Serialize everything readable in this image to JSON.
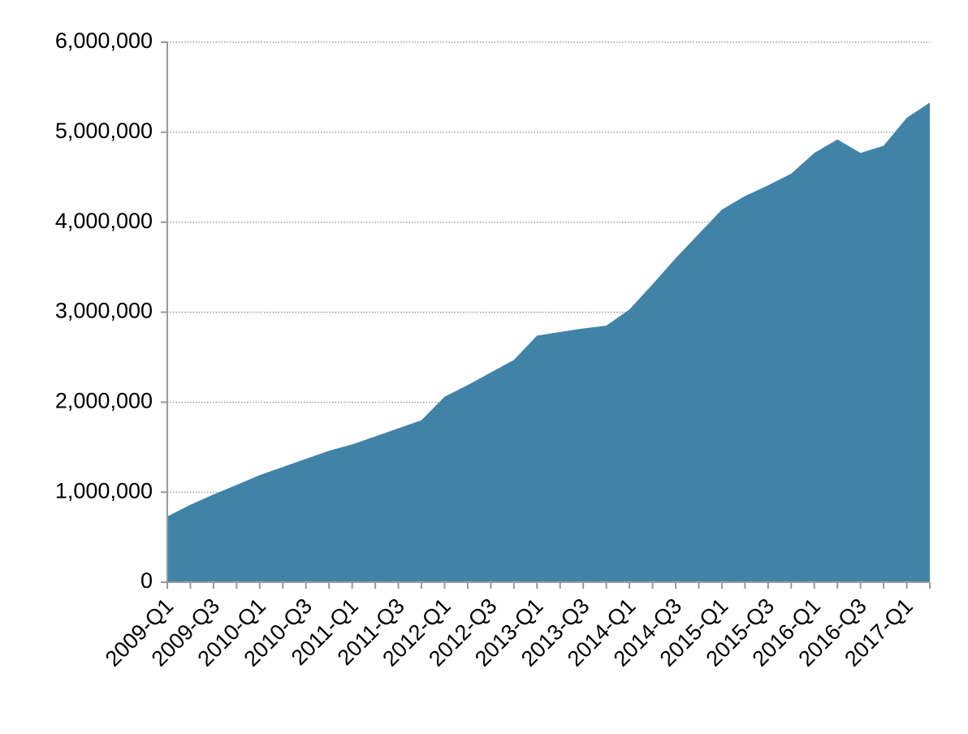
{
  "chart_data": {
    "type": "area",
    "categories": [
      "2009-Q1",
      null,
      "2009-Q3",
      null,
      "2010-Q1",
      null,
      "2010-Q3",
      null,
      "2011-Q1",
      null,
      "2011-Q3",
      null,
      "2012-Q1",
      null,
      "2012-Q3",
      null,
      "2013-Q1",
      null,
      "2013-Q3",
      null,
      "2014-Q1",
      null,
      "2014-Q3",
      null,
      "2015-Q1",
      null,
      "2015-Q3",
      null,
      "2016-Q1",
      null,
      "2016-Q3",
      null,
      "2017-Q1",
      null
    ],
    "values": [
      730000,
      860000,
      975000,
      1080000,
      1190000,
      1280000,
      1370000,
      1460000,
      1530000,
      1620000,
      1710000,
      1800000,
      2060000,
      2190000,
      2330000,
      2470000,
      2740000,
      2780000,
      2820000,
      2850000,
      3030000,
      3310000,
      3600000,
      3870000,
      4140000,
      4290000,
      4410000,
      4540000,
      4770000,
      4920000,
      4770000,
      4850000,
      5160000,
      5330000
    ],
    "color": "#4183a7",
    "ylim": [
      0,
      6000000
    ],
    "yticks": [
      0,
      {
        "value": 1000000,
        "label": "1,000,000"
      },
      {
        "value": 2000000,
        "label": "2,000,000"
      },
      {
        "value": 3000000,
        "label": "3,000,000"
      },
      {
        "value": 4000000,
        "label": "4,000,000"
      },
      {
        "value": 5000000,
        "label": "5,000,000"
      },
      {
        "value": 6000000,
        "label": "6,000,000"
      }
    ],
    "grid": true
  }
}
